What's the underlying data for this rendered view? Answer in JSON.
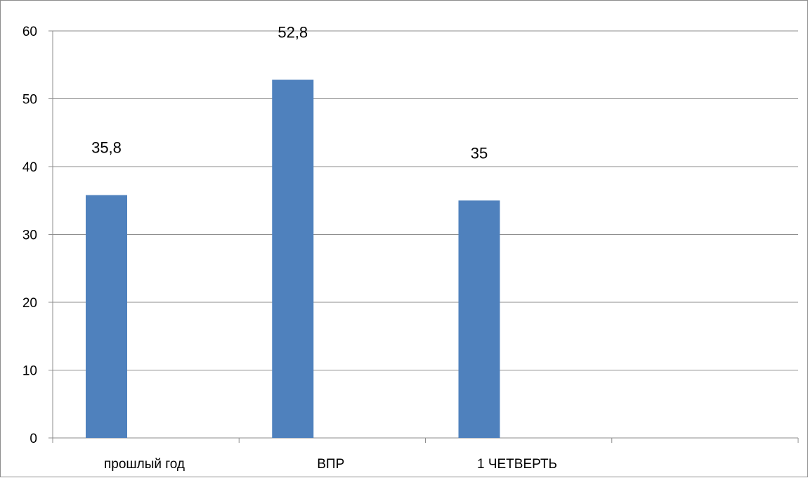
{
  "chart_data": {
    "type": "bar",
    "categories": [
      "прошлый год",
      "ВПР",
      "1 ЧЕТВЕРТЬ",
      ""
    ],
    "series": [
      {
        "values": [
          35.8,
          52.8,
          35,
          null
        ]
      }
    ],
    "data_labels": [
      "35,8",
      "52,8",
      "35",
      ""
    ],
    "ylim": [
      0,
      60
    ],
    "yticks": [
      0,
      10,
      20,
      30,
      40,
      50,
      60
    ],
    "grid": true,
    "legend": "none",
    "title": "",
    "xlabel": "",
    "ylabel": ""
  },
  "colors": {
    "bar": "#4f81bd",
    "grid": "#8c8c8c",
    "axis": "#8c8c8c"
  }
}
